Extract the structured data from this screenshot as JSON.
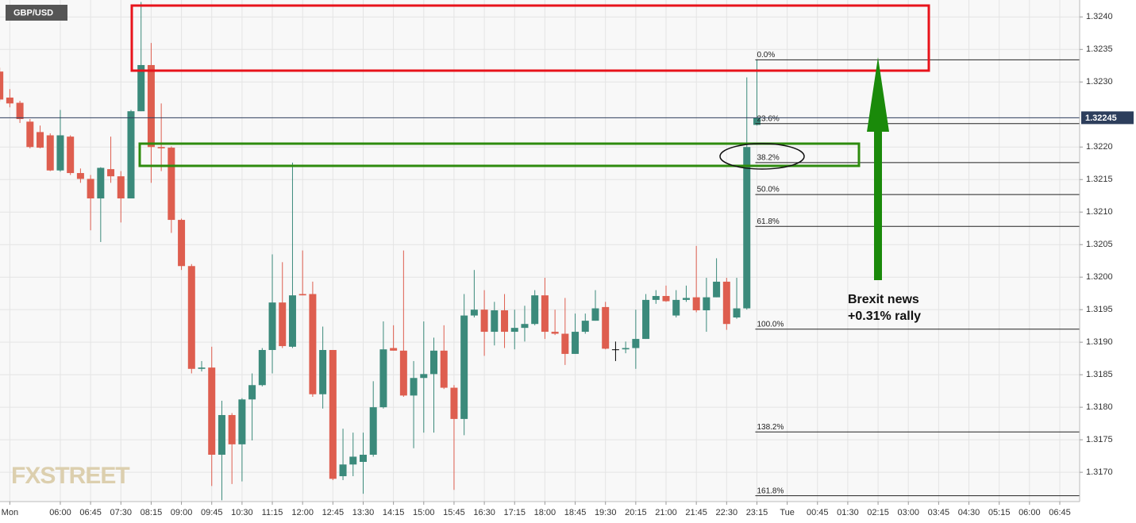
{
  "chart_data": {
    "type": "candlestick",
    "symbol": "GBP/USD",
    "watermark": "FXSTREET",
    "x": [
      270,
      285,
      300,
      315,
      330,
      345,
      360,
      375,
      390,
      405,
      420,
      435,
      450,
      465,
      480,
      495,
      510,
      525,
      540,
      555,
      570,
      585,
      600,
      615,
      630,
      645,
      660,
      675,
      690,
      705,
      720,
      735,
      750,
      765,
      780,
      795,
      810,
      825,
      840,
      855,
      870,
      885,
      900,
      915,
      930,
      945,
      960,
      975,
      990,
      1005,
      1020,
      1035,
      1050,
      1065,
      1080,
      1095,
      1110,
      1125,
      1140,
      1155,
      1170,
      1185,
      1200,
      1215,
      1230,
      1245,
      1260,
      1275,
      1290,
      1305,
      1320,
      1335,
      1350,
      1365,
      1380,
      1395
    ],
    "open": [
      1.32316,
      1.32276,
      1.32268,
      1.32239,
      1.32223,
      1.32218,
      1.32164,
      1.32216,
      1.3216,
      1.32151,
      1.32121,
      1.32166,
      1.32155,
      1.32121,
      1.32255,
      1.32326,
      1.322,
      1.32199,
      1.32088,
      1.32017,
      1.31859,
      1.31861,
      1.31727,
      1.31788,
      1.31743,
      1.31812,
      1.31834,
      1.31888,
      1.31961,
      1.31893,
      1.31974,
      1.31974,
      1.3182,
      1.31888,
      1.31694,
      1.31712,
      1.31716,
      1.31727,
      1.318,
      1.31891,
      1.31887,
      1.31818,
      1.31845,
      1.31851,
      1.31887,
      1.3183,
      1.31782,
      1.31941,
      1.3195,
      1.31916,
      1.31949,
      1.31916,
      1.31922,
      1.31928,
      1.31972,
      1.31916,
      1.31913,
      1.31882,
      1.31916,
      1.31933,
      1.31954,
      1.31889,
      1.31889,
      1.31891,
      1.31905,
      1.31965,
      1.31971,
      1.31941,
      1.31965,
      1.31969,
      1.31949,
      1.31969,
      1.31993,
      1.31938,
      1.31952,
      1.32234
    ],
    "high": [
      1.32322,
      1.32289,
      1.32271,
      1.32243,
      1.32233,
      1.32221,
      1.32257,
      1.32218,
      1.32167,
      1.32157,
      1.32169,
      1.32216,
      1.32163,
      1.32257,
      1.32423,
      1.3236,
      1.32267,
      1.32201,
      1.3209,
      1.3202,
      1.31871,
      1.31893,
      1.3181,
      1.31791,
      1.31814,
      1.31852,
      1.31891,
      1.32035,
      1.32023,
      1.32176,
      1.32041,
      1.31993,
      1.31924,
      1.31888,
      1.31767,
      1.31761,
      1.31761,
      1.3184,
      1.31932,
      1.31926,
      1.32041,
      1.31871,
      1.31932,
      1.31907,
      1.31926,
      1.31834,
      1.31974,
      1.32011,
      1.3198,
      1.31962,
      1.31974,
      1.3195,
      1.31956,
      1.3198,
      1.31999,
      1.3195,
      1.31968,
      1.31944,
      1.31944,
      1.3198,
      1.31962,
      1.31901,
      1.31901,
      1.3195,
      1.31974,
      1.3198,
      1.31987,
      1.3198,
      1.31987,
      1.32048,
      1.31999,
      1.32029,
      1.31999,
      1.31999,
      1.32307,
      1.32334
    ],
    "low": [
      1.3227,
      1.32261,
      1.32237,
      1.32198,
      1.32198,
      1.32163,
      1.32162,
      1.32157,
      1.32145,
      1.32072,
      1.32054,
      1.32145,
      1.32084,
      1.32121,
      1.32255,
      1.32145,
      1.32163,
      1.32068,
      1.32011,
      1.31852,
      1.31855,
      1.31679,
      1.31657,
      1.31682,
      1.31686,
      1.31749,
      1.31832,
      1.31852,
      1.31891,
      1.31891,
      1.31972,
      1.31816,
      1.31798,
      1.31688,
      1.31688,
      1.31694,
      1.31667,
      1.31724,
      1.31798,
      1.31887,
      1.31816,
      1.31737,
      1.31761,
      1.31761,
      1.31828,
      1.31673,
      1.31757,
      1.31938,
      1.31879,
      1.31895,
      1.31891,
      1.31889,
      1.31901,
      1.31926,
      1.31905,
      1.31911,
      1.31865,
      1.31882,
      1.31913,
      1.31933,
      1.31889,
      1.31871,
      1.31883,
      1.31859,
      1.31905,
      1.31959,
      1.31962,
      1.31938,
      1.31962,
      1.31946,
      1.31916,
      1.31969,
      1.31919,
      1.31936,
      1.3195,
      1.32233
    ],
    "close": [
      1.32273,
      1.32267,
      1.32243,
      1.322,
      1.32199,
      1.32164,
      1.32218,
      1.3216,
      1.32151,
      1.32121,
      1.32168,
      1.32155,
      1.32121,
      1.32255,
      1.32326,
      1.322,
      1.32198,
      1.32088,
      1.32017,
      1.31859,
      1.31861,
      1.31727,
      1.31788,
      1.31743,
      1.31812,
      1.31834,
      1.31888,
      1.31961,
      1.31894,
      1.31972,
      1.31972,
      1.3182,
      1.31888,
      1.3169,
      1.31712,
      1.31724,
      1.31727,
      1.318,
      1.31889,
      1.31887,
      1.31818,
      1.31845,
      1.31851,
      1.31887,
      1.3183,
      1.31782,
      1.31941,
      1.3195,
      1.31916,
      1.31949,
      1.31916,
      1.31922,
      1.31928,
      1.31972,
      1.31916,
      1.31913,
      1.31882,
      1.31916,
      1.31933,
      1.31952,
      1.3189,
      1.31889,
      1.31891,
      1.31905,
      1.31965,
      1.31971,
      1.31963,
      1.31965,
      1.31968,
      1.31949,
      1.31969,
      1.31993,
      1.31928,
      1.31952,
      1.322,
      1.32245
    ],
    "up_color": "#3b8a7b",
    "down_color": "#de5e4f",
    "doji_color": "#000000",
    "xlim": [
      270.4,
      1874.5
    ],
    "xticks": [
      {
        "value": 285,
        "label": "Mon"
      },
      {
        "value": 360,
        "label": "06:00"
      },
      {
        "value": 405,
        "label": "06:45"
      },
      {
        "value": 450,
        "label": "07:30"
      },
      {
        "value": 495,
        "label": "08:15"
      },
      {
        "value": 540,
        "label": "09:00"
      },
      {
        "value": 585,
        "label": "09:45"
      },
      {
        "value": 630,
        "label": "10:30"
      },
      {
        "value": 675,
        "label": "11:15"
      },
      {
        "value": 720,
        "label": "12:00"
      },
      {
        "value": 765,
        "label": "12:45"
      },
      {
        "value": 810,
        "label": "13:30"
      },
      {
        "value": 855,
        "label": "14:15"
      },
      {
        "value": 900,
        "label": "15:00"
      },
      {
        "value": 945,
        "label": "15:45"
      },
      {
        "value": 990,
        "label": "16:30"
      },
      {
        "value": 1035,
        "label": "17:15"
      },
      {
        "value": 1080,
        "label": "18:00"
      },
      {
        "value": 1125,
        "label": "18:45"
      },
      {
        "value": 1170,
        "label": "19:30"
      },
      {
        "value": 1215,
        "label": "20:15"
      },
      {
        "value": 1260,
        "label": "21:00"
      },
      {
        "value": 1305,
        "label": "21:45"
      },
      {
        "value": 1350,
        "label": "22:30"
      },
      {
        "value": 1395,
        "label": "23:15"
      },
      {
        "value": 1440,
        "label": "Tue"
      },
      {
        "value": 1485,
        "label": "00:45"
      },
      {
        "value": 1530,
        "label": "01:30"
      },
      {
        "value": 1575,
        "label": "02:15"
      },
      {
        "value": 1620,
        "label": "03:00"
      },
      {
        "value": 1665,
        "label": "03:45"
      },
      {
        "value": 1710,
        "label": "04:30"
      },
      {
        "value": 1755,
        "label": "05:15"
      },
      {
        "value": 1800,
        "label": "06:00"
      },
      {
        "value": 1845,
        "label": "06:45"
      }
    ],
    "ylim": [
      1.31655,
      1.32426
    ],
    "yticks": [
      {
        "value": 1.324,
        "label": "1.3240"
      },
      {
        "value": 1.3235,
        "label": "1.3235"
      },
      {
        "value": 1.323,
        "label": "1.3230"
      },
      {
        "value": 1.322,
        "label": "1.3220"
      },
      {
        "value": 1.3215,
        "label": "1.3215"
      },
      {
        "value": 1.321,
        "label": "1.3210"
      },
      {
        "value": 1.3205,
        "label": "1.3205"
      },
      {
        "value": 1.32,
        "label": "1.3200"
      },
      {
        "value": 1.3195,
        "label": "1.3195"
      },
      {
        "value": 1.319,
        "label": "1.3190"
      },
      {
        "value": 1.3185,
        "label": "1.3185"
      },
      {
        "value": 1.318,
        "label": "1.3180"
      },
      {
        "value": 1.3175,
        "label": "1.3175"
      },
      {
        "value": 1.317,
        "label": "1.3170"
      }
    ],
    "grid": true,
    "last_price": 1.32245,
    "last_price_color": "#2d3e5c",
    "fib_levels": [
      {
        "value": 1.32334,
        "label": "0.0%"
      },
      {
        "value": 1.32236,
        "label": "23.6%"
      },
      {
        "value": 1.32176,
        "label": "38.2%"
      },
      {
        "value": 1.32127,
        "label": "50.0%"
      },
      {
        "value": 1.32078,
        "label": "61.8%"
      },
      {
        "value": 1.3192,
        "label": "100.0%"
      },
      {
        "value": 1.31762,
        "label": "138.2%"
      },
      {
        "value": 1.31664,
        "label": "161.8%"
      }
    ],
    "annotation": [
      "Brexit news",
      "+0.31% rally"
    ]
  }
}
